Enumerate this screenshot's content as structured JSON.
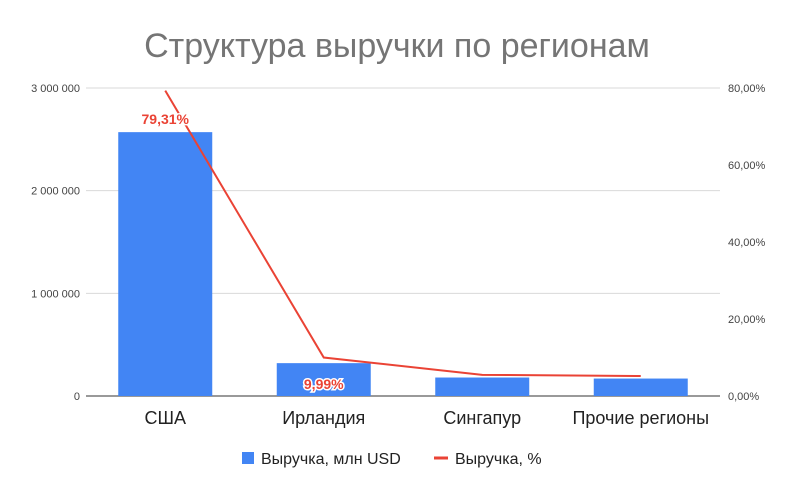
{
  "chart_data": {
    "type": "bar",
    "title": "Структура выручки по регионам",
    "categories": [
      "США",
      "Ирландия",
      "Сингапур",
      "Прочие регионы"
    ],
    "series": [
      {
        "name": "Выручка, млн USD",
        "kind": "bar",
        "axis": "left",
        "color": "#4285f4",
        "values": [
          2570000,
          320000,
          180000,
          170000
        ]
      },
      {
        "name": "Выручка, %",
        "kind": "line",
        "axis": "right",
        "color": "#ea4335",
        "values": [
          79.31,
          9.99,
          5.5,
          5.2
        ]
      }
    ],
    "data_labels": [
      {
        "category_index": 0,
        "text": "79,31%"
      },
      {
        "category_index": 1,
        "text": "9,99%"
      }
    ],
    "y_left": {
      "min": 0,
      "max": 3000000,
      "ticks": [
        0,
        1000000,
        2000000,
        3000000
      ],
      "tick_labels": [
        "0",
        "1 000 000",
        "2 000 000",
        "3 000 000"
      ]
    },
    "y_right": {
      "min": 0,
      "max": 80,
      "ticks": [
        0,
        20,
        40,
        60,
        80
      ],
      "tick_labels": [
        "0,00%",
        "20,00%",
        "40,00%",
        "60,00%",
        "80,00%"
      ]
    },
    "grid": true,
    "legend_position": "bottom"
  }
}
